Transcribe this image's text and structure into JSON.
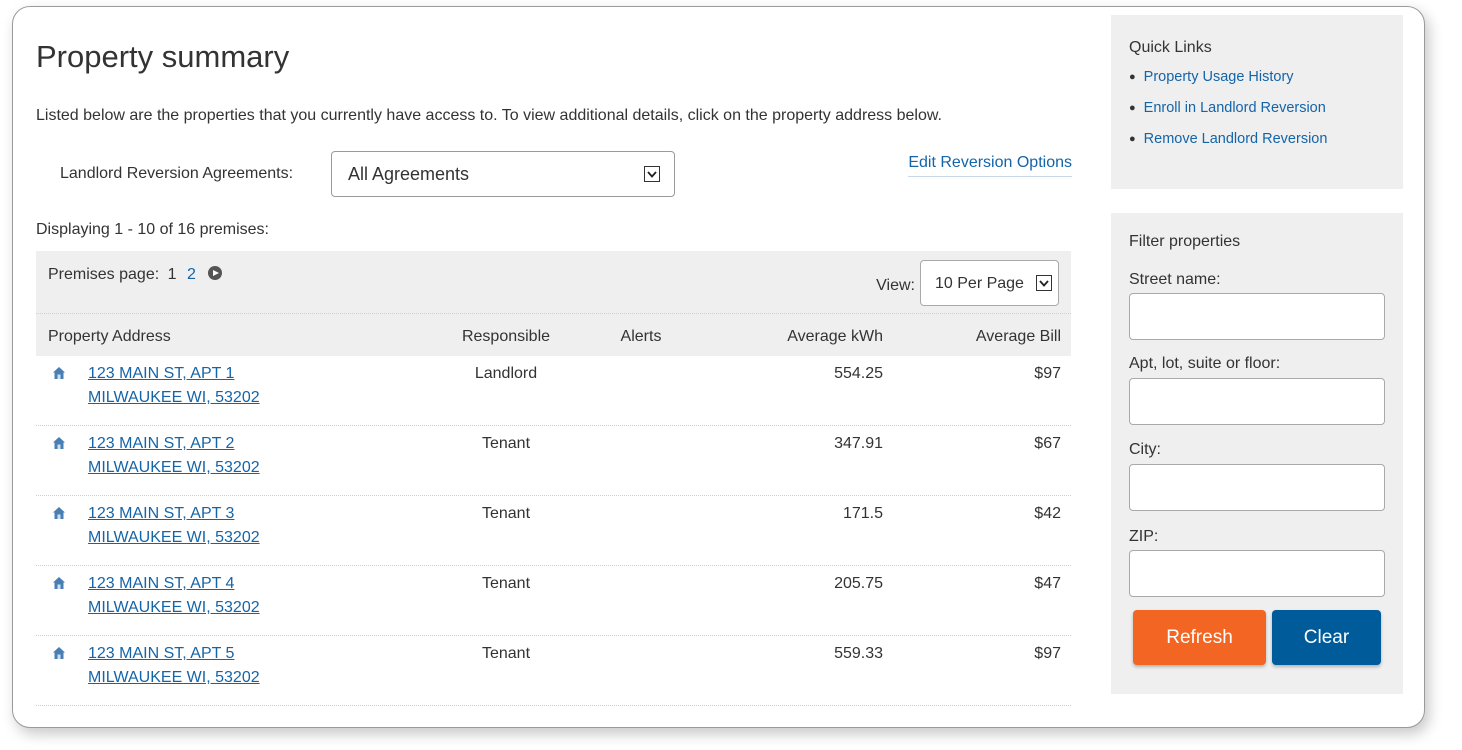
{
  "page": {
    "title": "Property summary",
    "intro": "Listed below are the properties that you currently have access to. To view additional details, click on the property address below."
  },
  "agreements": {
    "label": "Landlord Reversion Agreements:",
    "selected": "All Agreements",
    "edit_link": "Edit Reversion Options"
  },
  "listing": {
    "displaying": "Displaying 1 - 10 of 16 premises:",
    "pager_label": "Premises page:",
    "current_page": "1",
    "page_2": "2",
    "view_label": "View:",
    "per_page": "10 Per Page"
  },
  "table": {
    "headers": [
      "Property Address",
      "Responsible",
      "Alerts",
      "Average kWh",
      "Average Bill"
    ],
    "rows": [
      {
        "address1": "123 MAIN ST, APT 1",
        "address2": "MILWAUKEE WI, 53202",
        "responsible": "Landlord",
        "alerts": "",
        "kwh": "554.25",
        "bill": "$97"
      },
      {
        "address1": "123 MAIN ST, APT 2",
        "address2": "MILWAUKEE WI, 53202",
        "responsible": "Tenant",
        "alerts": "",
        "kwh": "347.91",
        "bill": "$67"
      },
      {
        "address1": "123 MAIN ST, APT 3",
        "address2": "MILWAUKEE WI, 53202",
        "responsible": "Tenant",
        "alerts": "",
        "kwh": "171.5",
        "bill": "$42"
      },
      {
        "address1": "123 MAIN ST, APT 4",
        "address2": "MILWAUKEE WI, 53202",
        "responsible": "Tenant",
        "alerts": "",
        "kwh": "205.75",
        "bill": "$47"
      },
      {
        "address1": "123 MAIN ST, APT 5",
        "address2": "MILWAUKEE WI, 53202",
        "responsible": "Tenant",
        "alerts": "",
        "kwh": "559.33",
        "bill": "$97"
      }
    ]
  },
  "quick_links": {
    "title": "Quick Links",
    "items": [
      "Property Usage History",
      "Enroll in Landlord Reversion",
      "Remove Landlord Reversion"
    ]
  },
  "filter": {
    "title": "Filter properties",
    "street_label": "Street name:",
    "street_value": "",
    "apt_label": "Apt, lot, suite or floor:",
    "apt_value": "",
    "city_label": "City:",
    "city_value": "",
    "zip_label": "ZIP:",
    "zip_value": "",
    "refresh_label": "Refresh",
    "clear_label": "Clear"
  },
  "colors": {
    "link": "#1464a8",
    "refresh": "#f26522",
    "clear": "#005b9a",
    "panel": "#efefef",
    "house_icon": "#4a7fb5"
  },
  "icons": {
    "address": "house-icon",
    "pager_next": "next-page-icon",
    "select": "chevron-down-icon"
  }
}
